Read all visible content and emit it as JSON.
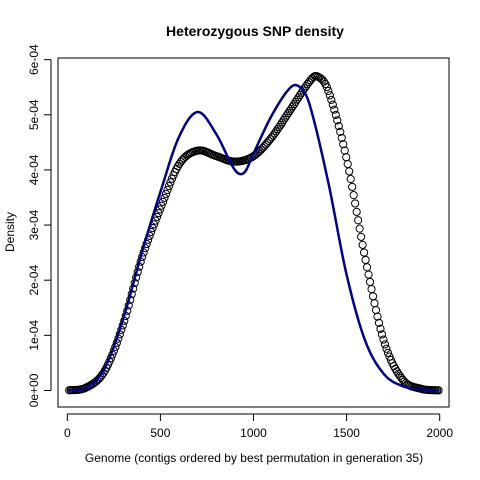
{
  "chart_data": {
    "type": "line",
    "title": "Heterozygous SNP density",
    "xlabel": "Genome (contigs ordered by best permutation in generation 35)",
    "ylabel": "Density",
    "xlim": [
      -50,
      2050
    ],
    "ylim": [
      -3e-05,
      0.000603
    ],
    "x_ticks": [
      0,
      500,
      1000,
      1500,
      2000
    ],
    "x_tick_labels": [
      "0",
      "500",
      "1000",
      "1500",
      "2000"
    ],
    "y_ticks": [
      0,
      0.0001,
      0.0002,
      0.0003,
      0.0004,
      0.0005,
      0.0006
    ],
    "y_tick_labels": [
      "0e+00",
      "1e-04",
      "2e-04",
      "3e-04",
      "4e-04",
      "5e-04",
      "6e-04"
    ],
    "grid": false,
    "series": [
      {
        "style": "points",
        "color": "#000000",
        "marker": "open-circle",
        "x_start": 10,
        "x_end": 2000,
        "x_step": 8,
        "control_points": [
          [
            0,
            0.0
          ],
          [
            100,
            5e-06
          ],
          [
            200,
            3.5e-05
          ],
          [
            300,
            0.00012
          ],
          [
            400,
            0.00024
          ],
          [
            500,
            0.00033
          ],
          [
            600,
            0.00041
          ],
          [
            700,
            0.000435
          ],
          [
            800,
            0.000425
          ],
          [
            900,
            0.000415
          ],
          [
            1000,
            0.000425
          ],
          [
            1100,
            0.00046
          ],
          [
            1200,
            0.00051
          ],
          [
            1300,
            0.00056
          ],
          [
            1340,
            0.00057
          ],
          [
            1400,
            0.000545
          ],
          [
            1500,
            0.00042
          ],
          [
            1600,
            0.00024
          ],
          [
            1700,
            9e-05
          ],
          [
            1800,
            2e-05
          ],
          [
            1900,
            3e-06
          ],
          [
            2000,
            0.0
          ]
        ]
      },
      {
        "style": "line",
        "color": "#00008B",
        "control_points": [
          [
            0,
            0.0
          ],
          [
            100,
            5e-06
          ],
          [
            200,
            4e-05
          ],
          [
            300,
            0.00013
          ],
          [
            400,
            0.00025
          ],
          [
            500,
            0.00036
          ],
          [
            600,
            0.00046
          ],
          [
            700,
            0.000505
          ],
          [
            800,
            0.000465
          ],
          [
            900,
            0.0004
          ],
          [
            950,
            0.000395
          ],
          [
            1000,
            0.00043
          ],
          [
            1100,
            0.0005
          ],
          [
            1200,
            0.00055
          ],
          [
            1250,
            0.00055
          ],
          [
            1300,
            0.00052
          ],
          [
            1400,
            0.00038
          ],
          [
            1500,
            0.00021
          ],
          [
            1600,
            9e-05
          ],
          [
            1700,
            3e-05
          ],
          [
            1800,
            8e-06
          ],
          [
            1900,
            2e-06
          ],
          [
            2000,
            0.0
          ]
        ]
      }
    ]
  }
}
